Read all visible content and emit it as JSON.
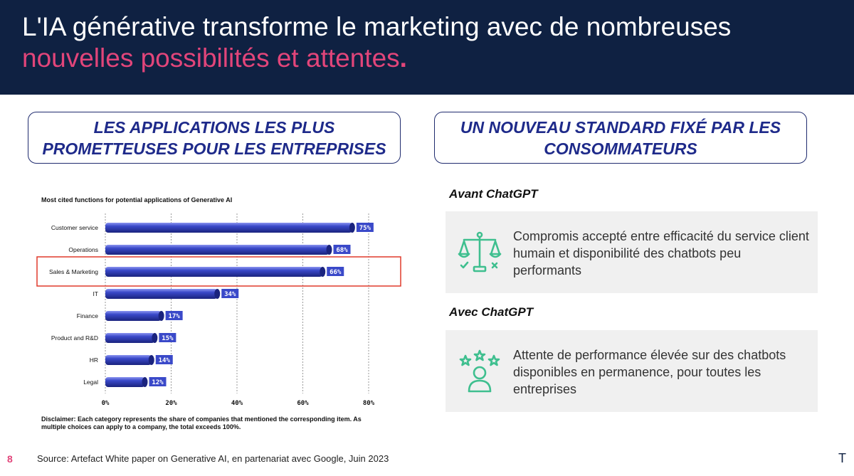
{
  "header": {
    "title_main": "L'IA générative transforme le marketing avec de nombreuses ",
    "title_highlight": "nouvelles possibilités et attentes",
    "title_end": "."
  },
  "left_section": {
    "title": "Les applications les plus prometteuses pour les entreprises"
  },
  "right_section": {
    "title": "Un nouveau standard fixé par les consommateurs",
    "before": {
      "title": "Avant ChatGPT",
      "text": "Compromis accepté entre efficacité du service client humain et disponibilité des chatbots peu performants",
      "icon": "balance-scale-icon"
    },
    "after": {
      "title": "Avec ChatGPT",
      "text": "Attente de performance élevée sur des chatbots disponibles en permanence, pour toutes les entreprises",
      "icon": "user-rating-stars-icon"
    }
  },
  "chart_data": {
    "type": "bar",
    "orientation": "horizontal",
    "title": "Most cited functions for potential applications of Generative AI",
    "categories": [
      "Customer service",
      "Operations",
      "Sales & Marketing",
      "IT",
      "Finance",
      "Product and R&D",
      "HR",
      "Legal"
    ],
    "values": [
      75,
      68,
      66,
      34,
      17,
      15,
      14,
      12
    ],
    "value_labels": [
      "75%",
      "68%",
      "66%",
      "34%",
      "17%",
      "15%",
      "14%",
      "12%"
    ],
    "x_ticks": [
      "0%",
      "20%",
      "40%",
      "60%",
      "80%"
    ],
    "xlim": [
      0,
      80
    ],
    "grid": "vertical dashed",
    "highlighted_category": "Sales & Marketing",
    "bar_color": "#3a49c9",
    "highlight_color": "#e03a2c",
    "disclaimer": "Disclaimer: Each category represents the share of companies that mentioned the corresponding item. As multiple choices can apply to a company, the total exceeds 100%."
  },
  "footer": {
    "page_number": "8",
    "source": "Source: Artefact White paper on Generative AI, en partenariat avec Google, Juin 2023",
    "brand_mark": "T"
  },
  "colors": {
    "header_bg": "#0f2142",
    "accent_pink": "#e2457a",
    "section_title": "#1e2a8a",
    "icon_green": "#3fbf8f"
  }
}
